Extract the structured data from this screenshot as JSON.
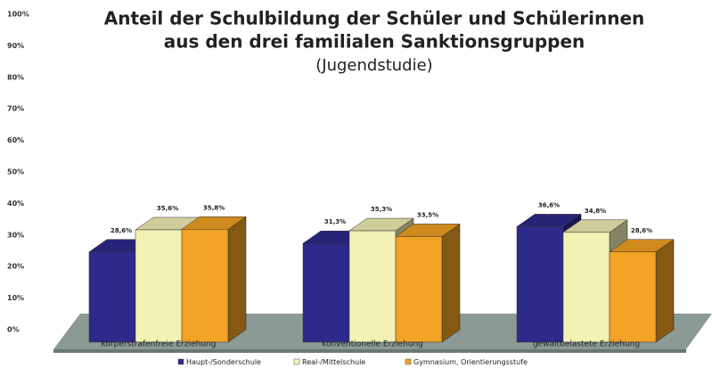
{
  "chart_data": {
    "type": "bar3d",
    "title": [
      "Anteil der Schulbildung der Schüler und Schülerinnen",
      "aus den drei familialen Sanktionsgruppen"
    ],
    "subtitle": "(Jugendstudie)",
    "categories": [
      "körperstrafenfreie Erziehung",
      "konventionelle Erziehung",
      "gewaltbelastete Erziehung"
    ],
    "series": [
      {
        "name": "Haupt-/Sonderschule",
        "color": "#2e2a8c",
        "values": [
          28.6,
          31.3,
          36.6
        ],
        "value_labels": [
          "28,6%",
          "31,3%",
          "36,6%"
        ]
      },
      {
        "name": "Real-/Mittelschule",
        "color": "#f4f1b4",
        "values": [
          35.6,
          35.3,
          34.8
        ],
        "value_labels": [
          "35,6%",
          "35,3%",
          "34,8%"
        ]
      },
      {
        "name": "Gymnasium, Orientierungsstufe",
        "color": "#f2a224",
        "values": [
          35.8,
          33.5,
          28.6
        ],
        "value_labels": [
          "35,8%",
          "33,5%",
          "28,6%"
        ]
      }
    ],
    "ylim": [
      0,
      100
    ],
    "yticks": [
      {
        "value": 0,
        "label": "0%"
      },
      {
        "value": 10,
        "label": "10%"
      },
      {
        "value": 20,
        "label": "20%"
      },
      {
        "value": 30,
        "label": "30%"
      },
      {
        "value": 40,
        "label": "40%"
      },
      {
        "value": 50,
        "label": "50%"
      },
      {
        "value": 60,
        "label": "60%"
      },
      {
        "value": 70,
        "label": "70%"
      },
      {
        "value": 80,
        "label": "80%"
      },
      {
        "value": 90,
        "label": "90%"
      },
      {
        "value": 100,
        "label": "100%"
      }
    ],
    "legend": "bottom"
  }
}
